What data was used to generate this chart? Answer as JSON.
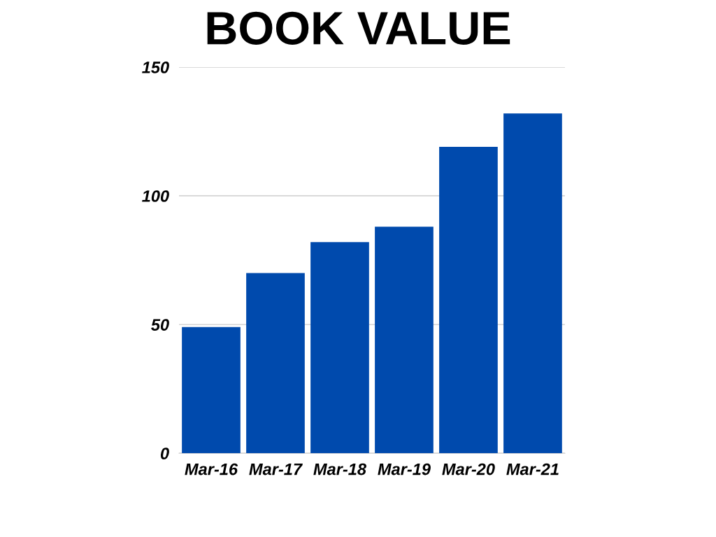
{
  "chart_data": {
    "type": "bar",
    "title": "BOOK VALUE",
    "categories": [
      "Mar-16",
      "Mar-17",
      "Mar-18",
      "Mar-19",
      "Mar-20",
      "Mar-21"
    ],
    "values": [
      49,
      70,
      82,
      88,
      119,
      132
    ],
    "color": "#004aad",
    "ylim": [
      0,
      150
    ],
    "yticks": [
      0,
      50,
      100,
      150
    ],
    "grid": "y"
  }
}
